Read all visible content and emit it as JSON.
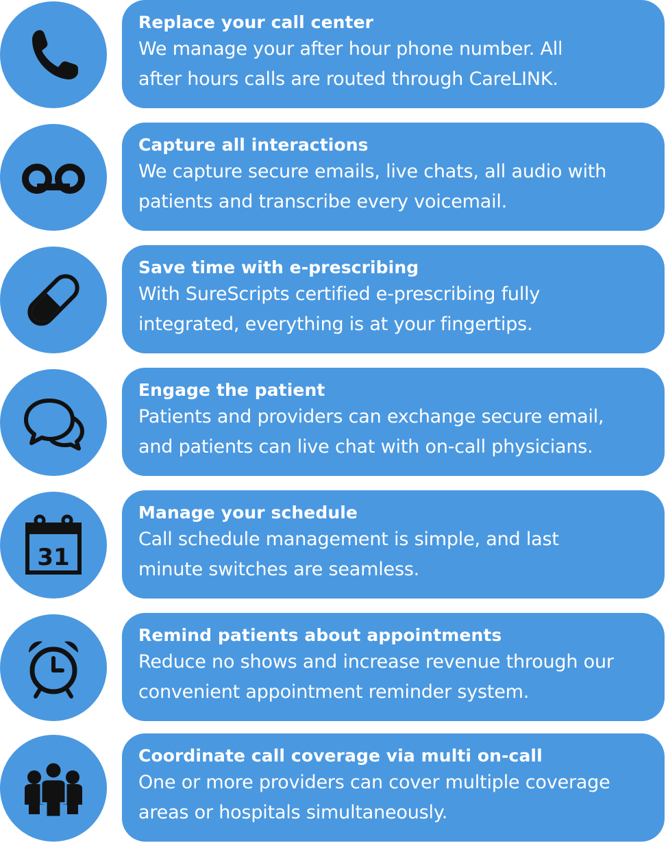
{
  "colors": {
    "accent": "#4a98e0",
    "text": "#ffffff",
    "icon": "#111111"
  },
  "features": [
    {
      "icon": "phone-icon",
      "title": "Replace your call center",
      "body": "We manage your after hour phone number.  All\nafter hours calls are routed through CareLINK."
    },
    {
      "icon": "voicemail-icon",
      "title": "Capture all interactions",
      "body": "We capture secure emails, live chats, all audio with\npatients and transcribe every voicemail."
    },
    {
      "icon": "pill-icon",
      "title": "Save time with e-prescribing",
      "body": "With SureScripts certified e-prescribing fully\nintegrated, everything is at your fingertips."
    },
    {
      "icon": "chat-bubbles-icon",
      "title": "Engage the patient",
      "body": "Patients and providers can exchange secure email,\nand patients can live chat with on-call physicians."
    },
    {
      "icon": "calendar-icon",
      "calendar_day": "31",
      "title": "Manage your schedule",
      "body": "Call schedule management is simple, and last\nminute switches are seamless."
    },
    {
      "icon": "alarm-clock-icon",
      "title": "Remind patients about appointments",
      "body": "Reduce no shows and increase revenue through our\nconvenient appointment reminder system."
    },
    {
      "icon": "group-icon",
      "title": "Coordinate call coverage via multi on-call",
      "body": "One or more providers can cover multiple coverage\nareas or hospitals simultaneously."
    }
  ]
}
